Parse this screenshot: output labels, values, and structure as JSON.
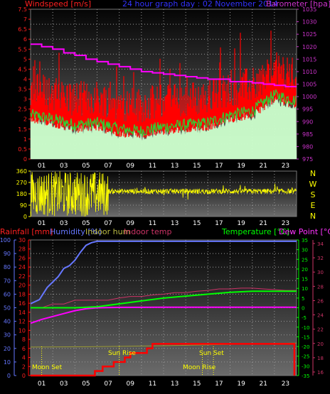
{
  "top_panel": {
    "title": "24 hour graph day : 02 November 2014",
    "left_label": "Windspeed [m/s]",
    "right_label": "Barometer [hpa]",
    "left_ticks": [
      "0",
      "0.5",
      "1",
      "1.5",
      "2",
      "2.5",
      "3",
      "3.5",
      "4",
      "4.5",
      "5",
      "5.5",
      "6",
      "6.5",
      "7",
      "7.5"
    ],
    "right_ticks": [
      "975",
      "980",
      "985",
      "990",
      "995",
      "1000",
      "1005",
      "1010",
      "1015",
      "1020",
      "1025",
      "1030",
      "1035"
    ],
    "x_ticks": [
      "01",
      "03",
      "05",
      "07",
      "09",
      "11",
      "13",
      "15",
      "17",
      "19",
      "21",
      "23"
    ]
  },
  "mid_panel": {
    "left_ticks": [
      "0",
      "90",
      "180",
      "270",
      "360"
    ],
    "compass": [
      "N",
      "W",
      "S",
      "E",
      "N"
    ],
    "x_ticks": [
      "01",
      "03",
      "05",
      "07",
      "09",
      "11",
      "13",
      "15",
      "17",
      "19",
      "21",
      "23"
    ]
  },
  "bottom_panel": {
    "labels": {
      "rainfall": "Rainfall [mm]",
      "humidity": "Humidity [%]",
      "indoor_hum": "Indoor hum",
      "indoor_temp": "Indoor temp",
      "temperature": "Temperature [°C]",
      "dew_point": "Dew Point [°C]"
    },
    "humidity_ticks": [
      "0",
      "10",
      "20",
      "30",
      "40",
      "50",
      "60",
      "70",
      "80",
      "90",
      "100"
    ],
    "rain_ticks": [
      "0",
      "2",
      "4",
      "6",
      "8",
      "10",
      "12",
      "14",
      "16",
      "18",
      "20",
      "22",
      "24",
      "26",
      "28",
      "30"
    ],
    "temp_ticks": [
      "-35",
      "-30",
      "-25",
      "-20",
      "-15",
      "-10",
      "-5",
      "0",
      "5",
      "10",
      "15",
      "20",
      "25",
      "30",
      "35"
    ],
    "indoor_ticks": [
      "16",
      "18",
      "20",
      "22",
      "24",
      "26",
      "28",
      "30",
      "32",
      "34"
    ],
    "x_ticks": [
      "01",
      "03",
      "05",
      "07",
      "09",
      "11",
      "13",
      "15",
      "17",
      "19",
      "21",
      "23"
    ],
    "annotations": {
      "moon_set": "Moon Set",
      "sun_rise": "Sun Rise",
      "sun_set": "Sun Set",
      "moon_rise": "Moon Rise"
    }
  },
  "colors": {
    "wind_gust": "#ff0000",
    "wind_avg": "#33cc33",
    "wind_fill": "#ccffcc",
    "barometer": "#ff00ff",
    "direction": "#ffff00",
    "humidity": "#6677ff",
    "temperature": "#00ff00",
    "dew_point": "#ff00ff",
    "indoor_temp": "#cc3366",
    "indoor_hum": "#999933",
    "rain": "#ff0000"
  },
  "chart_data": [
    {
      "type": "line",
      "series": [
        {
          "name": "Barometer [hpa]",
          "x": [
            0,
            1,
            2,
            3,
            4,
            5,
            6,
            7,
            8,
            9,
            10,
            11,
            12,
            13,
            14,
            15,
            16,
            17,
            18,
            19,
            20,
            21,
            22,
            23,
            24
          ],
          "values": [
            1021,
            1020,
            1019,
            1017.5,
            1016.5,
            1015,
            1014,
            1013,
            1012,
            1011,
            1010,
            1009.5,
            1009,
            1008.5,
            1008,
            1007.5,
            1007,
            1007,
            1006,
            1006,
            1005.5,
            1005,
            1004.5,
            1004,
            1004
          ]
        },
        {
          "name": "Windspeed [m/s]",
          "x": [
            0,
            2,
            4,
            6,
            8,
            10,
            12,
            14,
            16,
            18,
            20,
            22,
            24
          ],
          "values": [
            2.0,
            1.8,
            1.5,
            1.6,
            1.3,
            1.2,
            1.4,
            1.5,
            1.6,
            2.0,
            2.2,
            3.0,
            2.7
          ]
        }
      ],
      "xlim": [
        0,
        24
      ],
      "ylim": [
        0,
        7.5
      ],
      "y2lim": [
        975,
        1035
      ]
    },
    {
      "type": "line",
      "series": [
        {
          "name": "Indoor temp",
          "x": [
            0,
            1,
            2,
            3,
            4,
            5,
            6,
            7,
            8,
            9,
            10,
            11,
            12,
            13,
            14,
            15,
            16,
            17,
            18,
            19,
            20,
            21,
            22,
            23,
            24
          ],
          "values": [
            25,
            25,
            25.5,
            25.5,
            26,
            26,
            26,
            26,
            26.3,
            26.5,
            26.5,
            26.7,
            26.8,
            27,
            27,
            27.2,
            27.3,
            27.5,
            27.5,
            27.6,
            27.6,
            27.5,
            27.4,
            27.3,
            27.3
          ]
        },
        {
          "name": "Indoor hum",
          "x": [
            0,
            6,
            12,
            18,
            24
          ],
          "values": [
            21,
            21.3,
            22,
            23,
            24
          ]
        }
      ],
      "xlim": [
        0,
        24
      ],
      "y2lim": [
        -35,
        35
      ],
      "y3lim": [
        16,
        34
      ],
      "ylim": [
        0,
        100
      ]
    }
  ]
}
